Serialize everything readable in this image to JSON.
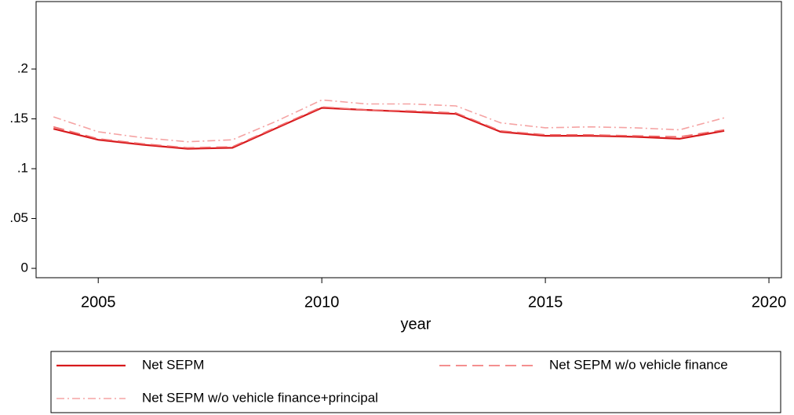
{
  "chart_data": {
    "type": "line",
    "x_label": "year",
    "x": [
      2004,
      2005,
      2006,
      2007,
      2008,
      2009,
      2010,
      2011,
      2012,
      2013,
      2014,
      2015,
      2016,
      2017,
      2018,
      2019
    ],
    "series": [
      {
        "name": "Net SEPM",
        "color": "#d7191c",
        "dash": "solid",
        "values": [
          0.14,
          0.129,
          0.124,
          0.12,
          0.121,
          0.141,
          0.161,
          0.159,
          0.157,
          0.155,
          0.137,
          0.133,
          0.133,
          0.132,
          0.13,
          0.138
        ]
      },
      {
        "name": "Net SEPM w/o vehicle finance",
        "color": "#f06a6a",
        "dash": "dash",
        "values": [
          0.142,
          0.13,
          0.125,
          0.121,
          0.122,
          0.142,
          0.162,
          0.159,
          0.158,
          0.156,
          0.138,
          0.134,
          0.134,
          0.133,
          0.132,
          0.139
        ]
      },
      {
        "name": "Net SEPM w/o vehicle finance+principal",
        "color": "#f5a3a3",
        "dash": "dashdot",
        "values": [
          0.152,
          0.137,
          0.131,
          0.127,
          0.129,
          0.148,
          0.169,
          0.165,
          0.165,
          0.163,
          0.146,
          0.141,
          0.142,
          0.141,
          0.139,
          0.151
        ]
      }
    ],
    "xlim": [
      2003.61,
      2020.28
    ],
    "xticks": [
      2005,
      2010,
      2015,
      2020
    ],
    "ylim": [
      -0.0094,
      0.2677
    ],
    "yticks": [
      0,
      {
        "value": 0.05,
        "label": ".05"
      },
      {
        "value": 0.1,
        "label": ".1"
      },
      {
        "value": 0.15,
        "label": ".15"
      },
      {
        "value": 0.2,
        "label": ".2"
      }
    ],
    "grid": false
  }
}
